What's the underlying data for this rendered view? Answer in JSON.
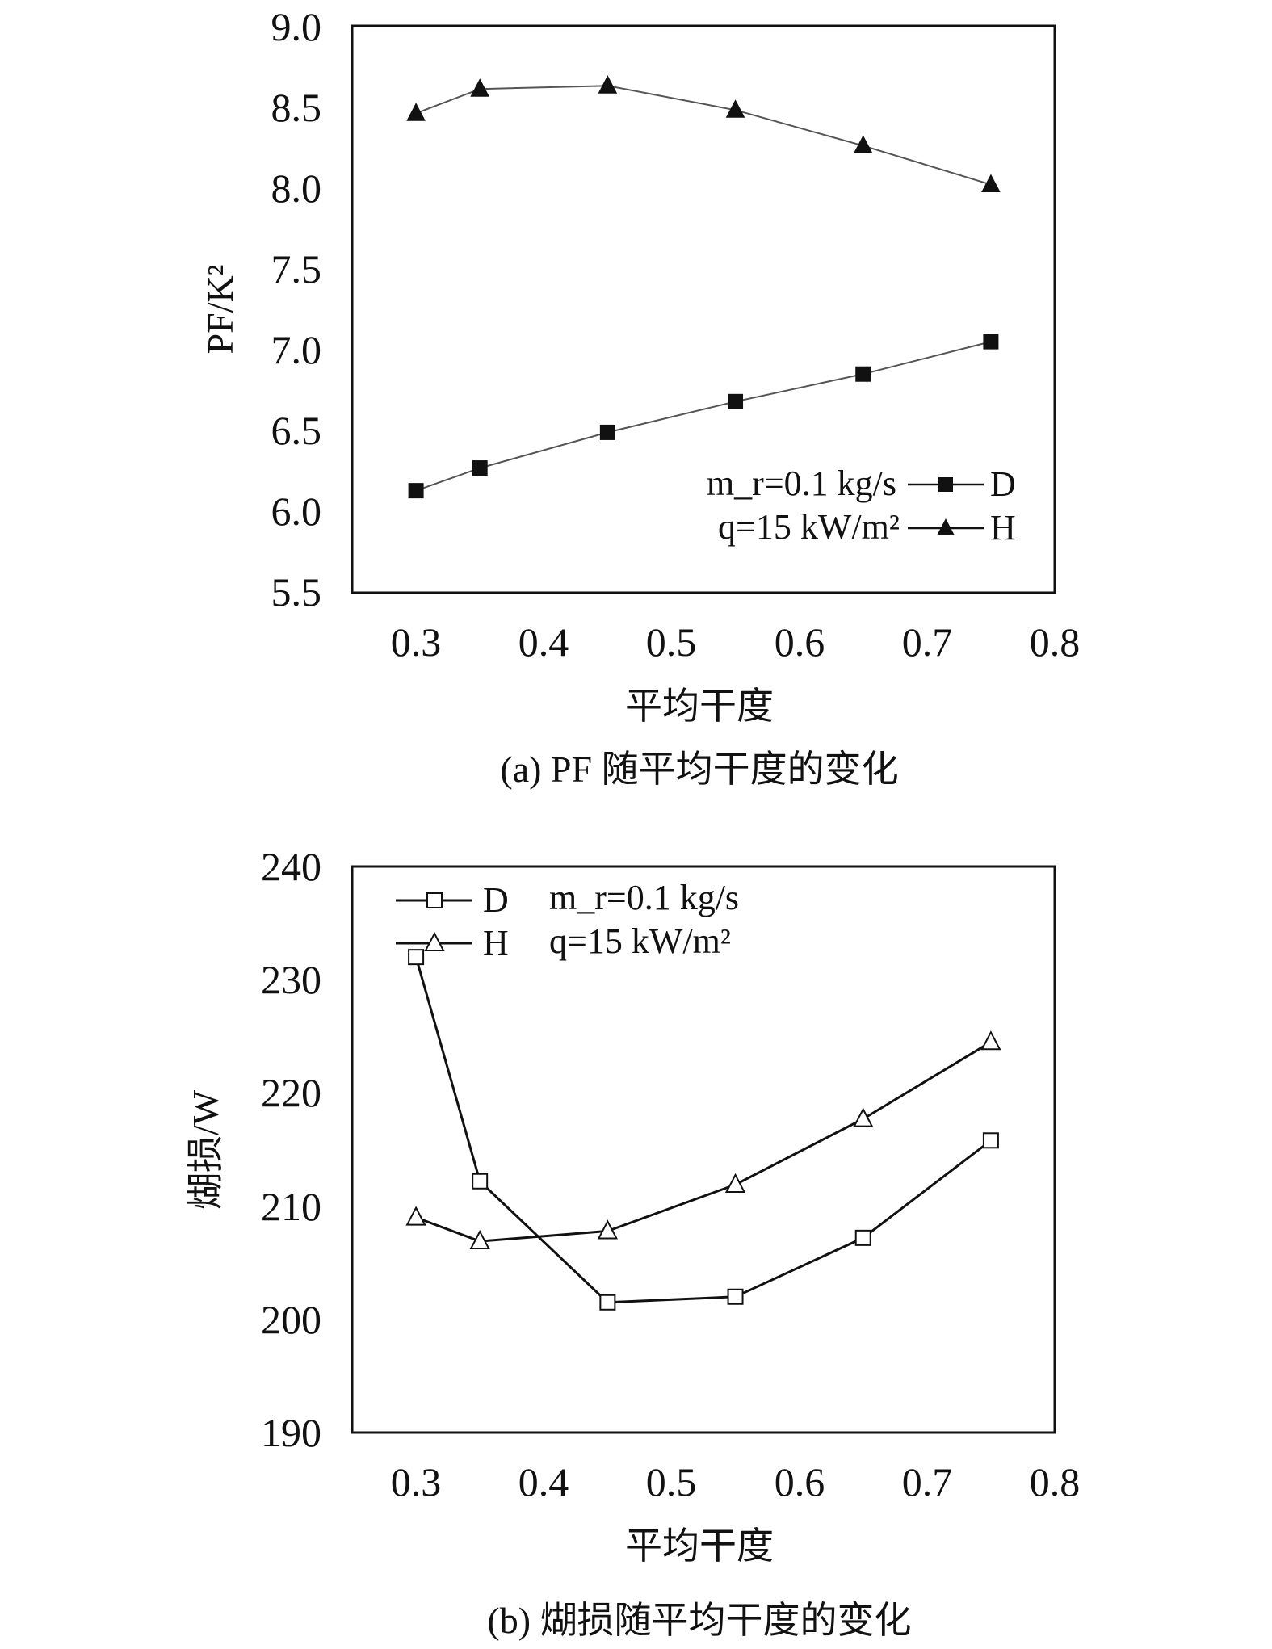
{
  "chart_data": [
    {
      "type": "line",
      "panel": "a",
      "caption": "(a) PF 随平均干度的变化",
      "xlabel": "平均干度",
      "ylabel": "PF/K²",
      "xlim": [
        0.25,
        0.8
      ],
      "ylim": [
        5.5,
        9.0
      ],
      "xticks": [
        "0.3",
        "0.4",
        "0.5",
        "0.6",
        "0.7",
        "0.8"
      ],
      "yticks": [
        "5.5",
        "6.0",
        "6.5",
        "7.0",
        "7.5",
        "8.0",
        "8.5",
        "9.0"
      ],
      "x": [
        0.3,
        0.35,
        0.45,
        0.55,
        0.65,
        0.75
      ],
      "series": [
        {
          "name": "D",
          "marker": "square-filled",
          "values": [
            6.13,
            6.27,
            6.49,
            6.68,
            6.85,
            7.05
          ]
        },
        {
          "name": "H",
          "marker": "triangle-filled",
          "values": [
            8.46,
            8.61,
            8.63,
            8.48,
            8.26,
            8.02
          ]
        }
      ],
      "annotations": [
        "m_r=0.1 kg/s",
        "q=15 kW/m²"
      ],
      "legend_position": "bottom-right"
    },
    {
      "type": "line",
      "panel": "b",
      "caption": "(b) 煳损随平均干度的变化",
      "xlabel": "平均干度",
      "ylabel": "煳损/W",
      "xlim": [
        0.25,
        0.8
      ],
      "ylim": [
        190,
        240
      ],
      "xticks": [
        "0.3",
        "0.4",
        "0.5",
        "0.6",
        "0.7",
        "0.8"
      ],
      "yticks": [
        "190",
        "200",
        "210",
        "220",
        "230",
        "240"
      ],
      "x": [
        0.3,
        0.35,
        0.45,
        0.55,
        0.65,
        0.75
      ],
      "series": [
        {
          "name": "D",
          "marker": "square-open",
          "values": [
            232,
            212.2,
            201.5,
            202,
            207.2,
            215.8
          ]
        },
        {
          "name": "H",
          "marker": "triangle-open",
          "values": [
            209,
            206.9,
            207.8,
            211.9,
            217.7,
            224.5
          ]
        }
      ],
      "annotations": [
        "m_r=0.1 kg/s",
        "q=15 kW/m²"
      ],
      "legend_position": "top-left"
    }
  ]
}
